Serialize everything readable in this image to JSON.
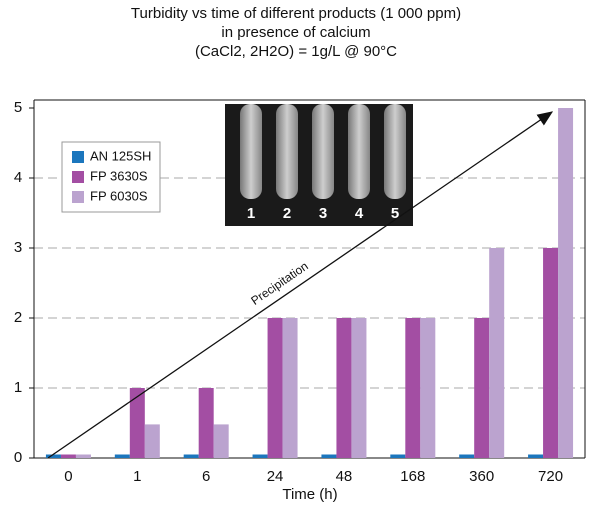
{
  "chart_data": {
    "type": "bar",
    "title": [
      "Turbidity vs time of different products (1 000 ppm)",
      "in presence of calcium",
      "(CaCl2, 2H2O) = 1g/L @ 90°C"
    ],
    "x_label": "Time (h)",
    "categories": [
      "0",
      "1",
      "6",
      "24",
      "48",
      "168",
      "360",
      "720"
    ],
    "series": [
      {
        "name": "AN 125SH",
        "color": "#1b76bd",
        "values": [
          0.05,
          0.05,
          0.05,
          0.05,
          0.05,
          0.05,
          0.05,
          0.05
        ]
      },
      {
        "name": "FP 3630S",
        "color": "#a34ea3",
        "values": [
          0.05,
          1,
          1,
          2,
          2,
          2,
          2,
          3
        ]
      },
      {
        "name": "FP 6030S",
        "color": "#bba3cf",
        "values": [
          0.05,
          0.48,
          0.48,
          2,
          2,
          2,
          3,
          5
        ]
      }
    ],
    "ylim": [
      0,
      5
    ],
    "yticks": [
      0,
      1,
      2,
      3,
      4,
      5
    ],
    "grid": true,
    "legend": "upper left",
    "annotation": "Precipitation",
    "inset_labels": [
      "1",
      "2",
      "3",
      "4",
      "5"
    ]
  }
}
